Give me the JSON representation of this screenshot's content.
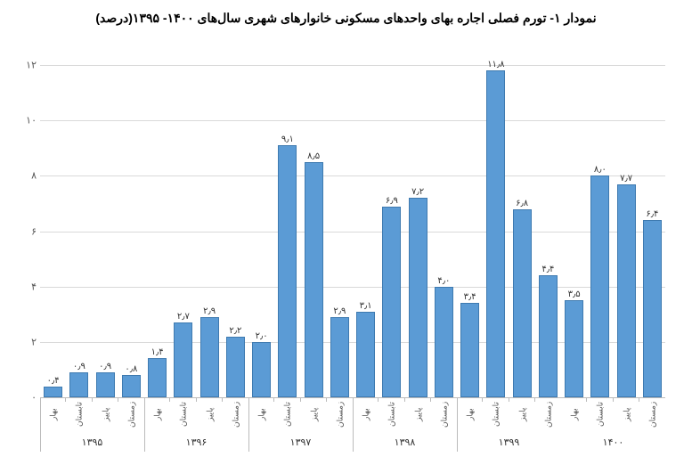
{
  "title": "نمودار ۱- تورم فصلی اجاره بهای واحدهای مسکونی خانوارهای شهری سال‌های ۱۴۰۰- ۱۳۹۵(درصد)",
  "chart": {
    "type": "bar",
    "bar_color": "#5b9bd5",
    "bar_border": "#3e7ab0",
    "grid_color": "#d9d9d9",
    "axis_color": "#bbbbbb",
    "background": "#ffffff",
    "y": {
      "min": 0,
      "max": 12,
      "step": 2,
      "ticks_fa": [
        "۰",
        "۲",
        "۴",
        "۶",
        "۸",
        "۱۰",
        "۱۲"
      ]
    },
    "seasons": [
      "بهار",
      "تابستان",
      "پاییز",
      "زمستان"
    ],
    "groups": [
      {
        "year_fa": "۱۳۹۵",
        "values": [
          0.4,
          0.9,
          0.9,
          0.8
        ],
        "labels_fa": [
          "۰٫۴",
          "۰٫۹",
          "۰٫۹",
          "۰٫۸"
        ]
      },
      {
        "year_fa": "۱۳۹۶",
        "values": [
          1.4,
          2.7,
          2.9,
          2.2
        ],
        "labels_fa": [
          "۱٫۴",
          "۲٫۷",
          "۲٫۹",
          "۲٫۲"
        ]
      },
      {
        "year_fa": "۱۳۹۷",
        "values": [
          2.0,
          9.1,
          8.5,
          2.9
        ],
        "labels_fa": [
          "۲٫۰",
          "۹٫۱",
          "۸٫۵",
          "۲٫۹"
        ]
      },
      {
        "year_fa": "۱۳۹۸",
        "values": [
          3.1,
          6.9,
          7.2,
          4.0
        ],
        "labels_fa": [
          "۳٫۱",
          "۶٫۹",
          "۷٫۲",
          "۴٫۰"
        ]
      },
      {
        "year_fa": "۱۳۹۹",
        "values": [
          3.4,
          11.8,
          6.8,
          4.4
        ],
        "labels_fa": [
          "۳٫۴",
          "۱۱٫۸",
          "۶٫۸",
          "۴٫۴"
        ]
      },
      {
        "year_fa": "۱۴۰۰",
        "values": [
          3.5,
          8.0,
          7.7,
          6.4
        ],
        "labels_fa": [
          "۳٫۵",
          "۸٫۰",
          "۷٫۷",
          "۶٫۴"
        ]
      }
    ]
  }
}
